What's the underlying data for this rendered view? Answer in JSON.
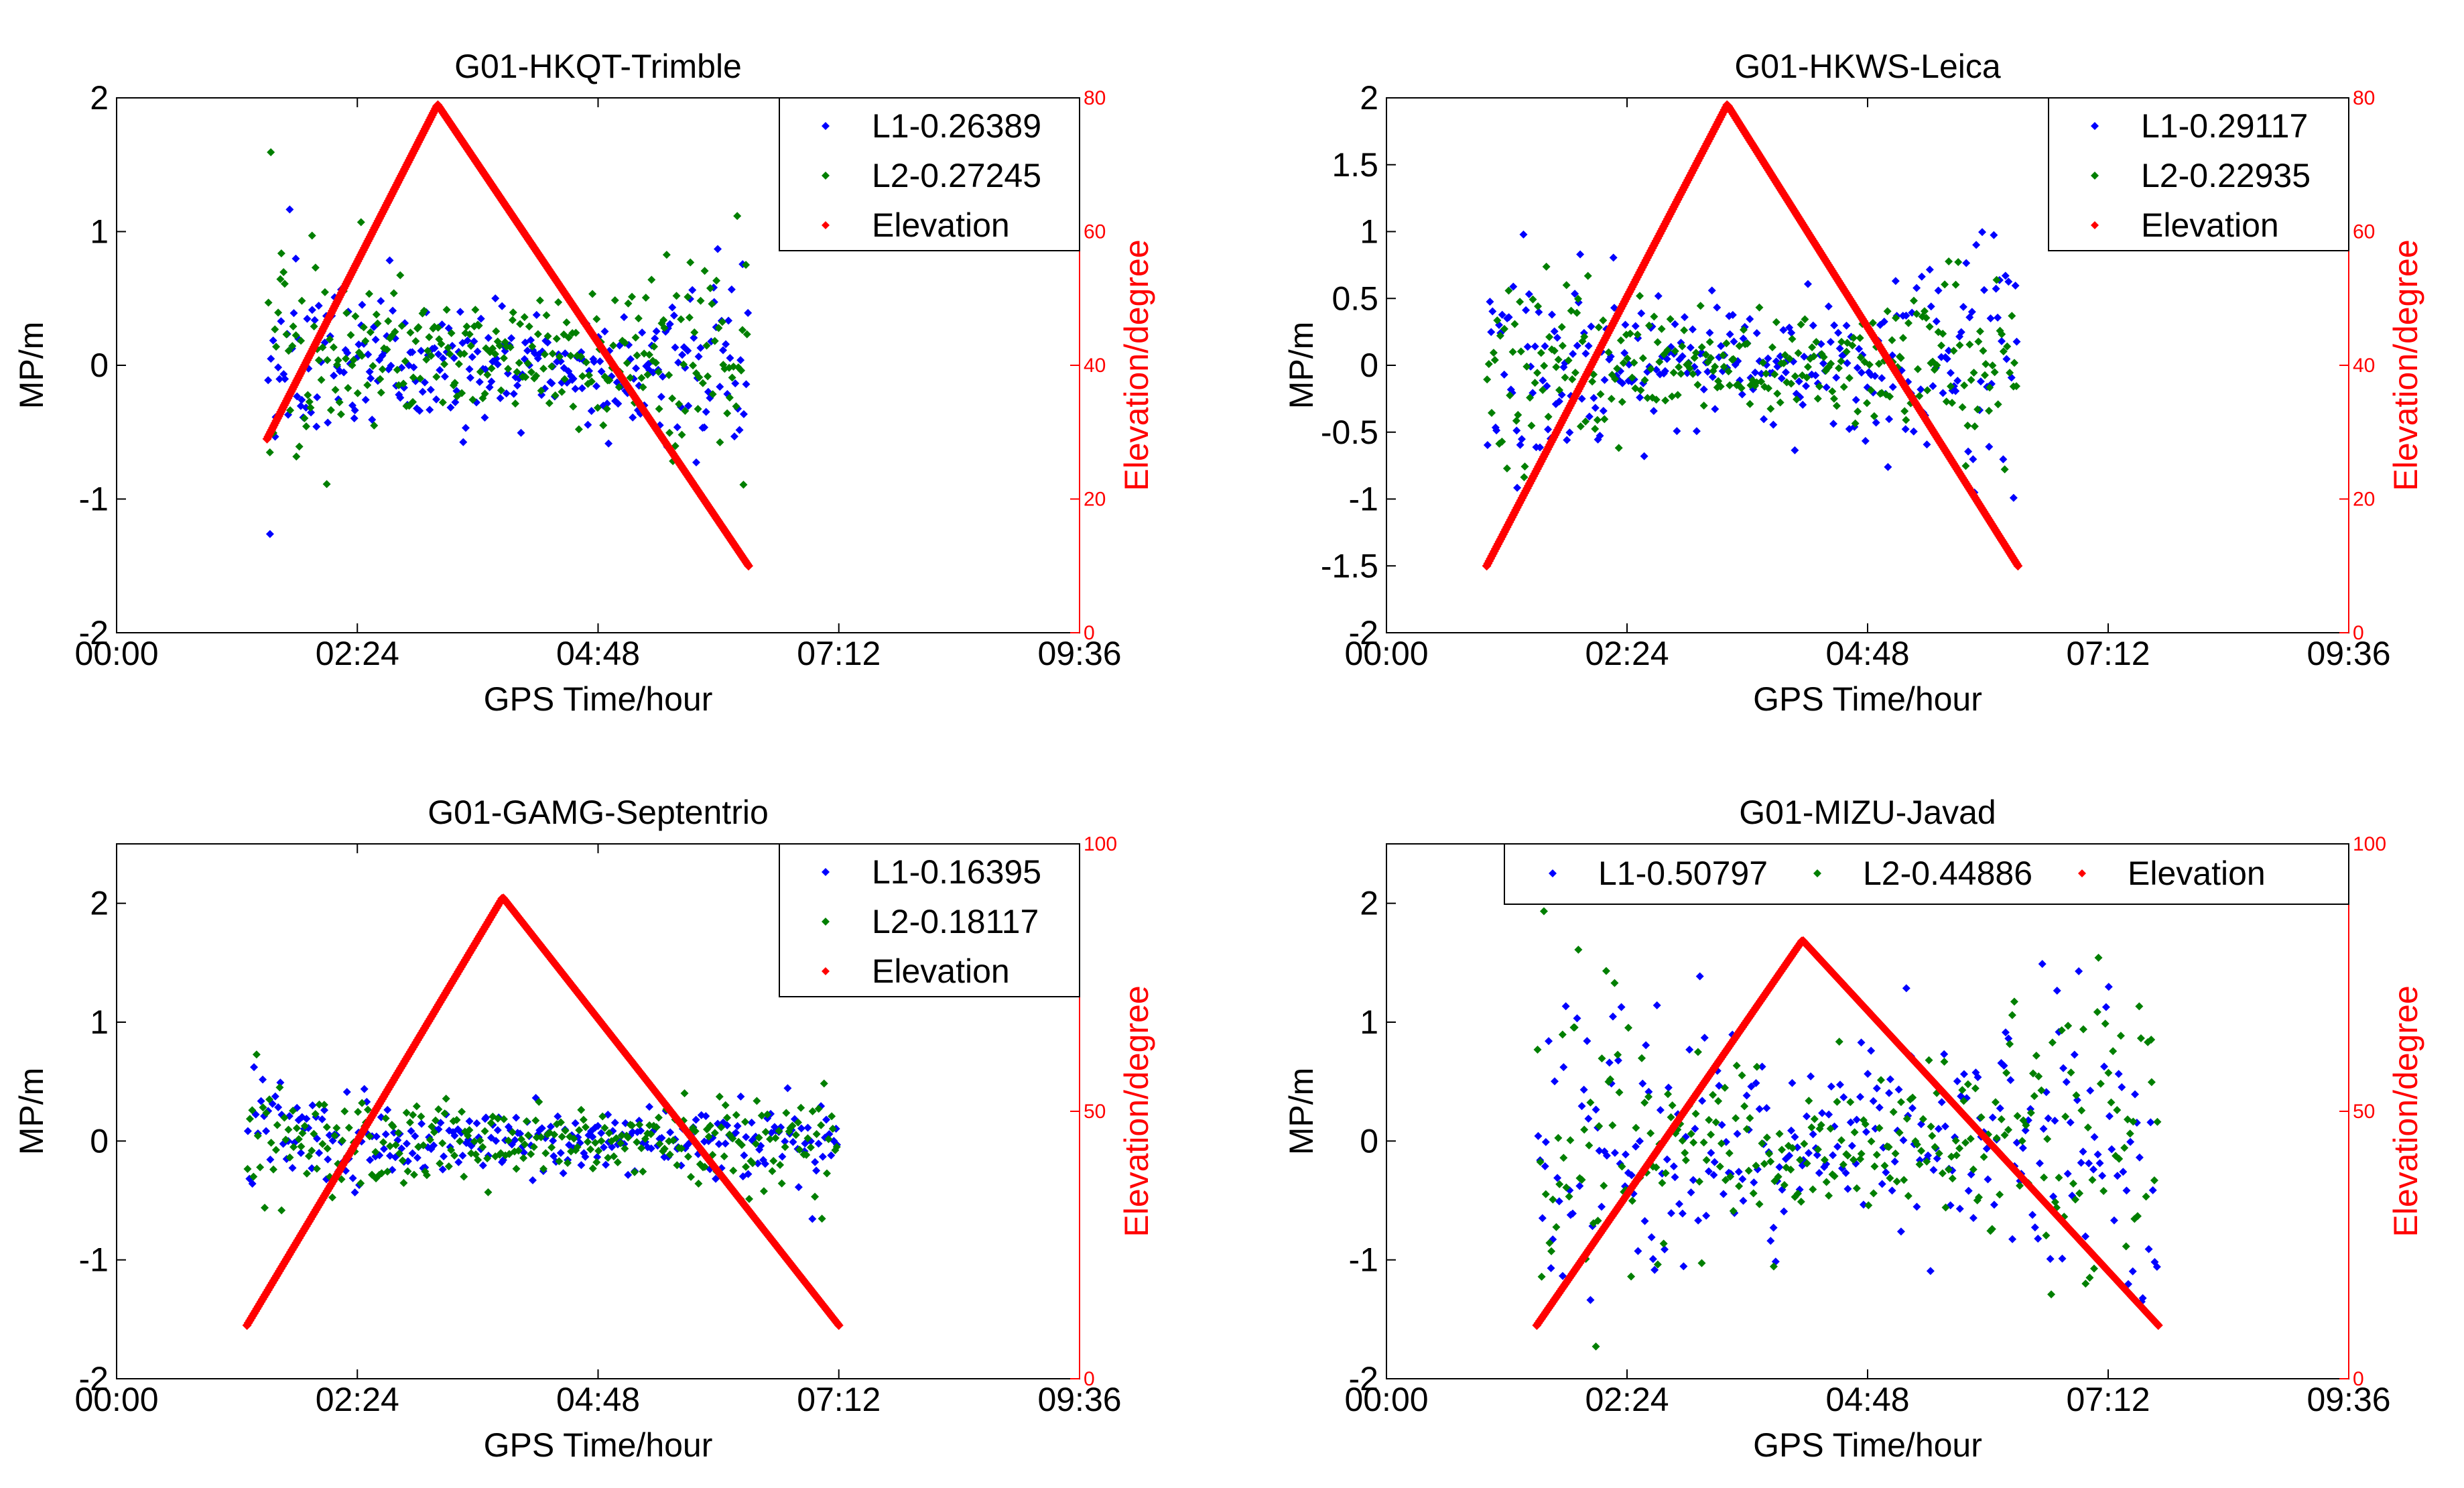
{
  "figure": {
    "shared": {
      "xlabel": "GPS Time/hour",
      "ylabel_left": "MP/m",
      "ylabel_right": "Elevation/degree",
      "x_tick_labels": [
        "00:00",
        "02:24",
        "04:48",
        "07:12",
        "09:36"
      ],
      "x_range_hours": [
        0,
        9.6
      ],
      "colors": {
        "L1": "#0000ff",
        "L2": "#007f00",
        "Elevation": "#ff0000",
        "axis": "#000000",
        "right_axis": "#ff0000"
      }
    }
  },
  "chart_data": [
    {
      "type": "scatter",
      "title": "G01-HKQT-Trimble",
      "xlabel": "GPS Time/hour",
      "ylabel": "MP/m",
      "y2label": "Elevation/degree",
      "xlim": [
        0,
        9.6
      ],
      "ylim": [
        -2,
        2
      ],
      "yticks": [
        "-2",
        "-1",
        "0",
        "1",
        "2"
      ],
      "y2lim": [
        0,
        80
      ],
      "y2ticks": [
        "0",
        "20",
        "40",
        "60",
        "80"
      ],
      "legend": {
        "placement": "top-right",
        "layout": "vertical",
        "entries": [
          "L1-0.26389",
          "L2-0.27245",
          "Elevation"
        ]
      },
      "series": [
        {
          "name": "L1-0.26389",
          "rms": 0.26389,
          "start_hours": 1.5,
          "end_hours": 6.3,
          "approx_spread_m": 0.26
        },
        {
          "name": "L2-0.27245",
          "rms": 0.27245,
          "start_hours": 1.5,
          "end_hours": 6.3,
          "approx_spread_m": 0.27
        },
        {
          "name": "Elevation",
          "axis": "right",
          "x": [
            1.5,
            3.2,
            6.3
          ],
          "y": [
            29,
            79,
            10
          ]
        }
      ]
    },
    {
      "type": "scatter",
      "title": "G01-HKWS-Leica",
      "xlabel": "GPS Time/hour",
      "ylabel": "MP/m",
      "y2label": "Elevation/degree",
      "xlim": [
        0,
        9.6
      ],
      "ylim": [
        -2,
        2
      ],
      "yticks": [
        "-2",
        "-1.5",
        "-1",
        "-0.5",
        "0",
        "0.5",
        "1",
        "1.5",
        "2"
      ],
      "y2lim": [
        0,
        80
      ],
      "y2ticks": [
        "0",
        "20",
        "40",
        "60",
        "80"
      ],
      "legend": {
        "placement": "top-right",
        "layout": "vertical",
        "entries": [
          "L1-0.29117",
          "L2-0.22935",
          "Elevation"
        ]
      },
      "series": [
        {
          "name": "L1-0.29117",
          "rms": 0.29117,
          "start_hours": 1.0,
          "end_hours": 6.3,
          "approx_spread_m": 0.29
        },
        {
          "name": "L2-0.22935",
          "rms": 0.22935,
          "start_hours": 1.0,
          "end_hours": 6.3,
          "approx_spread_m": 0.23
        },
        {
          "name": "Elevation",
          "axis": "right",
          "x": [
            1.0,
            3.4,
            6.3
          ],
          "y": [
            10,
            79,
            10
          ]
        }
      ]
    },
    {
      "type": "scatter",
      "title": "G01-GAMG-Septentrio",
      "xlabel": "GPS Time/hour",
      "ylabel": "MP/m",
      "y2label": "Elevation/degree",
      "xlim": [
        0,
        9.6
      ],
      "ylim": [
        -2,
        2.5
      ],
      "yticks": [
        "-2",
        "-1",
        "0",
        "1",
        "2"
      ],
      "y2lim": [
        0,
        100
      ],
      "y2ticks": [
        "0",
        "50",
        "100"
      ],
      "legend": {
        "placement": "top-right",
        "layout": "vertical",
        "entries": [
          "L1-0.16395",
          "L2-0.18117",
          "Elevation"
        ]
      },
      "series": [
        {
          "name": "L1-0.16395",
          "rms": 0.16395,
          "start_hours": 1.3,
          "end_hours": 7.2,
          "approx_spread_m": 0.16
        },
        {
          "name": "L2-0.18117",
          "rms": 0.18117,
          "start_hours": 1.3,
          "end_hours": 7.2,
          "approx_spread_m": 0.18
        },
        {
          "name": "Elevation",
          "axis": "right",
          "x": [
            1.3,
            3.85,
            7.2
          ],
          "y": [
            10,
            90,
            10
          ]
        }
      ]
    },
    {
      "type": "scatter",
      "title": "G01-MIZU-Javad",
      "xlabel": "GPS Time/hour",
      "ylabel": "MP/m",
      "y2label": "Elevation/degree",
      "xlim": [
        0,
        9.6
      ],
      "ylim": [
        -2,
        2.5
      ],
      "yticks": [
        "-2",
        "-1",
        "0",
        "1",
        "2"
      ],
      "y2lim": [
        0,
        100
      ],
      "y2ticks": [
        "0",
        "50",
        "100"
      ],
      "legend": {
        "placement": "top",
        "layout": "horizontal",
        "entries": [
          "L1-0.50797",
          "L2-0.44886",
          "Elevation"
        ]
      },
      "series": [
        {
          "name": "L1-0.50797",
          "rms": 0.50797,
          "start_hours": 1.5,
          "end_hours": 7.7,
          "approx_spread_m": 0.51
        },
        {
          "name": "L2-0.44886",
          "rms": 0.44886,
          "start_hours": 1.5,
          "end_hours": 7.7,
          "approx_spread_m": 0.45
        },
        {
          "name": "Elevation",
          "axis": "right",
          "x": [
            1.5,
            4.15,
            7.7
          ],
          "y": [
            10,
            82,
            10
          ]
        }
      ]
    }
  ]
}
